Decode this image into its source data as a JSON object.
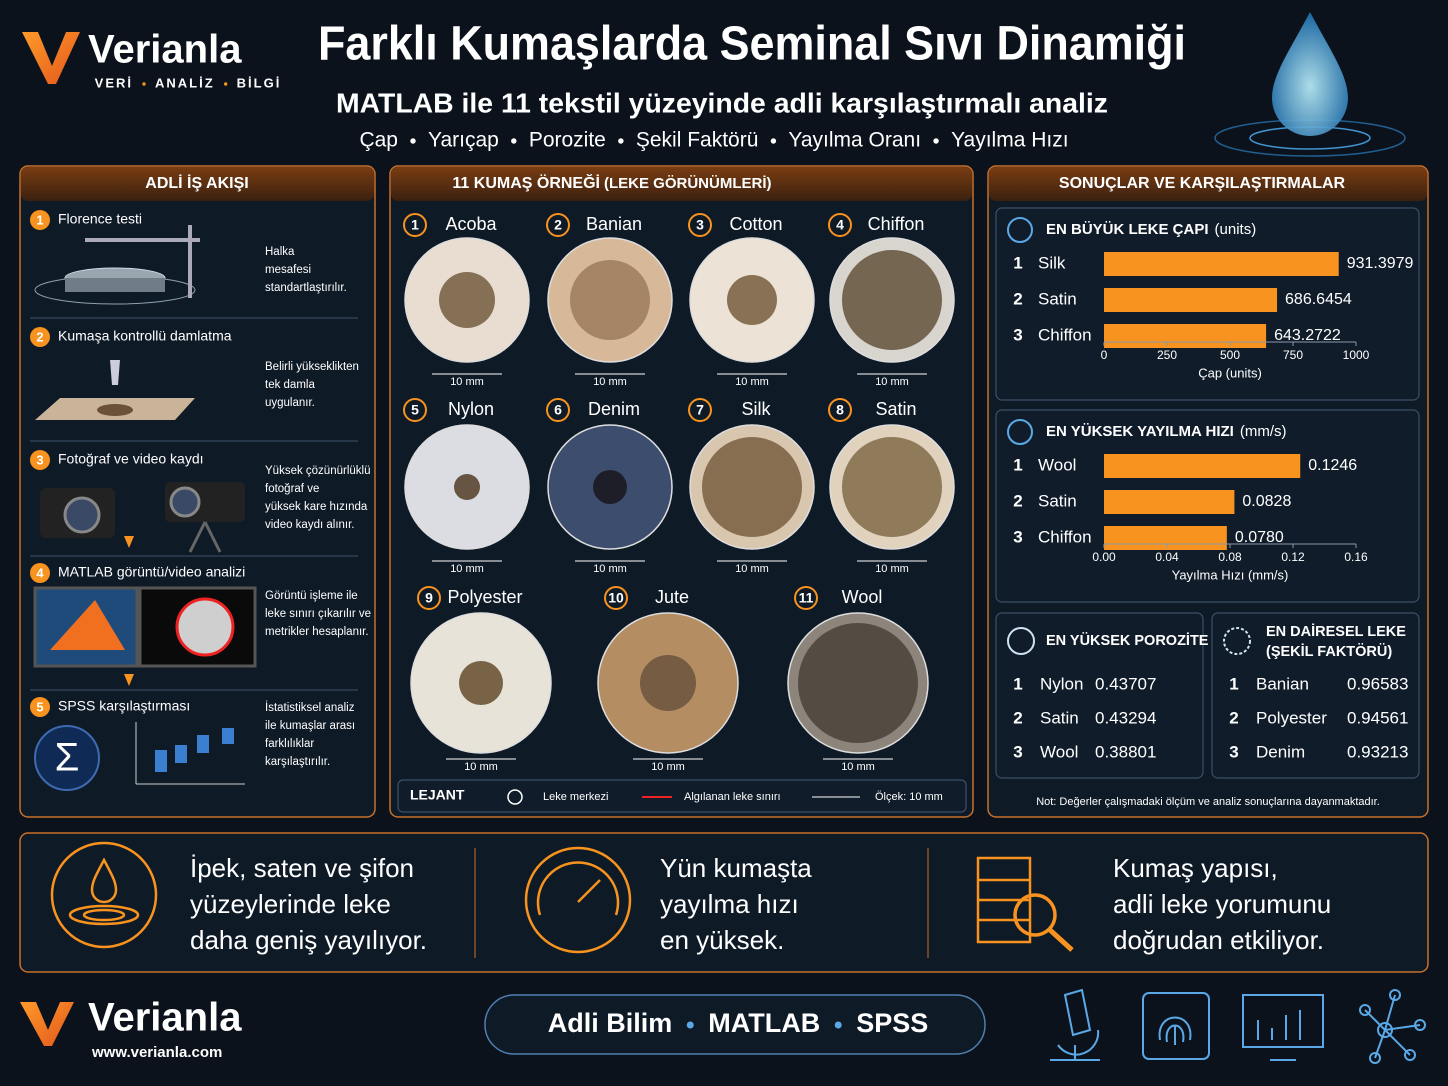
{
  "header": {
    "brand": "Verianla",
    "tagline": [
      "VERİ",
      "ANALİZ",
      "BİLGİ"
    ],
    "title": "Farklı Kumaşlarda Seminal Sıvı Dinamiği",
    "subtitle": "MATLAB ile 11 tekstil yüzeyinde adli karşılaştırmalı analiz",
    "metrics": [
      "Çap",
      "Yarıçap",
      "Porozite",
      "Şekil Faktörü",
      "Yayılma Oranı",
      "Yayılma Hızı"
    ]
  },
  "workflow": {
    "title": "ADLİ İŞ AKIŞI",
    "steps": [
      {
        "number": "1",
        "title": "Florence testi",
        "text": [
          "Halka",
          "mesafesi",
          "standartlaştırılır."
        ]
      },
      {
        "number": "2",
        "title": "Kumaşa kontrollü damlatma",
        "text": [
          "Belirli yükseklikten",
          "tek damla",
          "uygulanır."
        ]
      },
      {
        "number": "3",
        "title": "Fotoğraf ve video kaydı",
        "text": [
          "Yüksek çözünürlüklü",
          "fotoğraf ve",
          "yüksek kare hızında",
          "video kaydı alınır."
        ]
      },
      {
        "number": "4",
        "title": "MATLAB görüntü/video analizi",
        "text": [
          "Görüntü işleme ile",
          "leke sınırı çıkarılır ve",
          "metrikler hesaplanır."
        ]
      },
      {
        "number": "5",
        "title": "SPSS karşılaştırması",
        "text": [
          "İstatistiksel analiz",
          "ile kumaşlar arası",
          "farklılıklar",
          "karşılaştırılır."
        ]
      }
    ]
  },
  "samples": {
    "title": "11 KUMAŞ ÖRNEĞİ",
    "title_note": "(LEKE GÖRÜNÜMLERİ)",
    "items": [
      {
        "number": "1",
        "name": "Acoba",
        "scale": "10 mm"
      },
      {
        "number": "2",
        "name": "Banian",
        "scale": "10 mm"
      },
      {
        "number": "3",
        "name": "Cotton",
        "scale": "10 mm"
      },
      {
        "number": "4",
        "name": "Chiffon",
        "scale": "10 mm"
      },
      {
        "number": "5",
        "name": "Nylon",
        "scale": "10 mm"
      },
      {
        "number": "6",
        "name": "Denim",
        "scale": "10 mm"
      },
      {
        "number": "7",
        "name": "Silk",
        "scale": "10 mm"
      },
      {
        "number": "8",
        "name": "Satin",
        "scale": "10 mm"
      },
      {
        "number": "9",
        "name": "Polyester",
        "scale": "10 mm"
      },
      {
        "number": "10",
        "name": "Jute",
        "scale": "10 mm"
      },
      {
        "number": "11",
        "name": "Wool",
        "scale": "10 mm"
      }
    ],
    "legend": {
      "title": "LEJANT",
      "center": "Leke merkezi",
      "boundary": "Algılanan leke sınırı",
      "scale": "Ölçek: 10 mm"
    }
  },
  "results": {
    "title": "SONUÇLAR VE KARŞILAŞTIRMALAR",
    "note": "Not: Değerler çalışmadaki ölçüm ve analiz sonuçlarına dayanmaktadır."
  },
  "chart_data": [
    {
      "type": "bar",
      "orientation": "horizontal",
      "title": "EN BÜYÜK LEKE ÇAPI",
      "unit": "(units)",
      "ranks": [
        "1",
        "2",
        "3"
      ],
      "categories": [
        "Silk",
        "Satin",
        "Chiffon"
      ],
      "values": [
        931.3979,
        686.6454,
        643.2722
      ],
      "color": "#f7931e",
      "xlabel": "Çap (units)",
      "xlim": [
        0,
        1000
      ],
      "xticks": [
        0,
        250,
        500,
        750,
        1000
      ]
    },
    {
      "type": "bar",
      "orientation": "horizontal",
      "title": "EN YÜKSEK YAYILMA HIZI",
      "unit": "(mm/s)",
      "ranks": [
        "1",
        "2",
        "3"
      ],
      "categories": [
        "Wool",
        "Satin",
        "Chiffon"
      ],
      "values": [
        0.1246,
        0.0828,
        0.078
      ],
      "value_labels": [
        "0.1246",
        "0.0828",
        "0.0780"
      ],
      "color": "#f7931e",
      "xlabel": "Yayılma Hızı (mm/s)",
      "xlim": [
        0,
        0.16
      ],
      "xticks": [
        {
          "value": 0,
          "label": "0.00"
        },
        0.04,
        0.08,
        0.12,
        0.16
      ]
    }
  ],
  "tables": [
    {
      "title": [
        "EN YÜKSEK POROZİTE"
      ],
      "rows": [
        [
          "1",
          "Nylon",
          0.43707
        ],
        [
          "2",
          "Satin",
          0.43294
        ],
        [
          "3",
          "Wool",
          0.38801
        ]
      ]
    },
    {
      "title": [
        "EN DAİRESEL LEKE",
        "(ŞEKİL FAKTÖRÜ)"
      ],
      "rows": [
        [
          "1",
          "Banian",
          0.96583
        ],
        [
          "2",
          "Polyester",
          0.94561
        ],
        [
          "3",
          "Denim",
          0.93213
        ]
      ]
    }
  ],
  "takeaways": [
    [
      "İpek, saten ve şifon",
      "yüzeylerinde leke",
      "daha geniş yayılıyor."
    ],
    [
      "Yün kumaşta",
      "yayılma hızı",
      "en yüksek."
    ],
    [
      "Kumaş yapısı,",
      "adli leke yorumunu",
      "doğrudan etkiliyor."
    ]
  ],
  "footer": {
    "brand": "Verianla",
    "url": "www.verianla.com",
    "topics": [
      "Adli Bilim",
      "MATLAB",
      "SPSS"
    ]
  }
}
